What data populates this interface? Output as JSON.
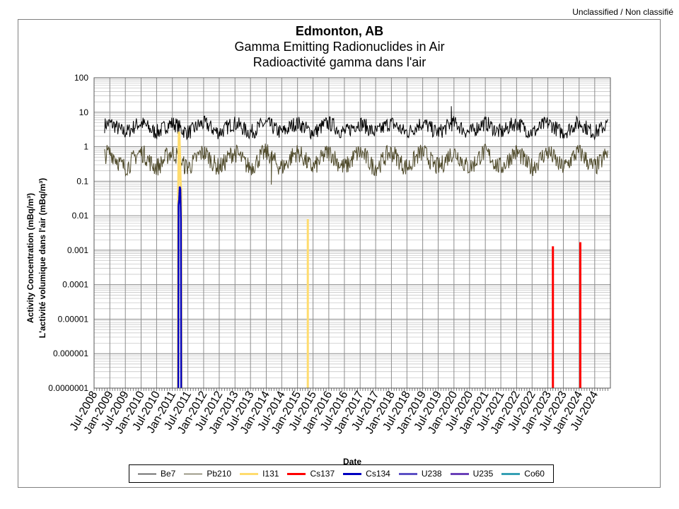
{
  "classification": "Unclassified / Non classifié",
  "chart_data": {
    "type": "line",
    "title": "Edmonton, AB",
    "subtitle": [
      "Gamma Emitting Radionuclides in Air",
      "Radioactivité gamma dans l'air"
    ],
    "xlabel": "Date",
    "ylabel": [
      "Activity Concentration  (mBq/m³)",
      "L'activité volumique dans l'air (mBq/m³)"
    ],
    "yscale": "log",
    "ylim": [
      1e-07,
      100
    ],
    "yticks": [
      "0.0000001",
      "0.000001",
      "0.00001",
      "0.0001",
      "0.001",
      "0.01",
      "0.1",
      "1",
      "10",
      "100"
    ],
    "xlim": [
      "2008-07-01",
      "2024-12-31"
    ],
    "xticks": [
      "Jul-2008",
      "Jan-2009",
      "Jul-2009",
      "Jan-2010",
      "Jul-2010",
      "Jan-2011",
      "Jul-2011",
      "Jan-2012",
      "Jul-2012",
      "Jan-2013",
      "Jul-2013",
      "Jan-2014",
      "Jul-2014",
      "Jan-2015",
      "Jul-2015",
      "Jan-2016",
      "Jul-2016",
      "Jan-2017",
      "Jul-2017",
      "Jan-2018",
      "Jul-2018",
      "Jan-2019",
      "Jul-2019",
      "Jan-2020",
      "Jul-2020",
      "Jan-2021",
      "Jul-2021",
      "Jan-2022",
      "Jul-2022",
      "Jan-2023",
      "Jul-2023",
      "Jan-2024",
      "Jul-2024"
    ],
    "grid": true,
    "legend_position": "bottom",
    "series": [
      {
        "name": "Be7",
        "color": "#000000",
        "x_range": [
          "2008-11-01",
          "2024-12-01"
        ],
        "typical_range": [
          1.5,
          7
        ],
        "peak": {
          "x": "2019-12-01",
          "y": 15
        }
      },
      {
        "name": "Pb210",
        "color": "#4f4a2a",
        "x_range": [
          "2008-11-01",
          "2024-12-01"
        ],
        "typical_range": [
          0.15,
          1.5
        ],
        "min": {
          "x": "2014-03-01",
          "y": 0.08
        }
      },
      {
        "name": "I131",
        "color": "#ffdc6e",
        "x": [
          "2011-03-10",
          "2011-03-17",
          "2011-03-24",
          "2011-03-31",
          "2011-04-07",
          "2011-04-14",
          "2015-05-01"
        ],
        "y": [
          0.03,
          2.7,
          2.5,
          0.6,
          0.1,
          0.05,
          0.008
        ]
      },
      {
        "name": "Cs137",
        "color": "#ff0000",
        "x": [
          "2023-03-01",
          "2024-01-15"
        ],
        "y": [
          0.0013,
          0.0017
        ]
      },
      {
        "name": "Cs134",
        "color": "#0000c0",
        "x": [
          "2011-03-14",
          "2011-03-21",
          "2011-03-28",
          "2011-04-04",
          "2011-04-11"
        ],
        "y": [
          0.02,
          0.03,
          0.07,
          0.06,
          0.008
        ]
      },
      {
        "name": "U238",
        "color": "#5b4fc4",
        "x": [],
        "y": []
      },
      {
        "name": "U235",
        "color": "#6a3fb8",
        "x": [],
        "y": []
      },
      {
        "name": "Co60",
        "color": "#35a0b4",
        "x": [],
        "y": []
      }
    ]
  }
}
